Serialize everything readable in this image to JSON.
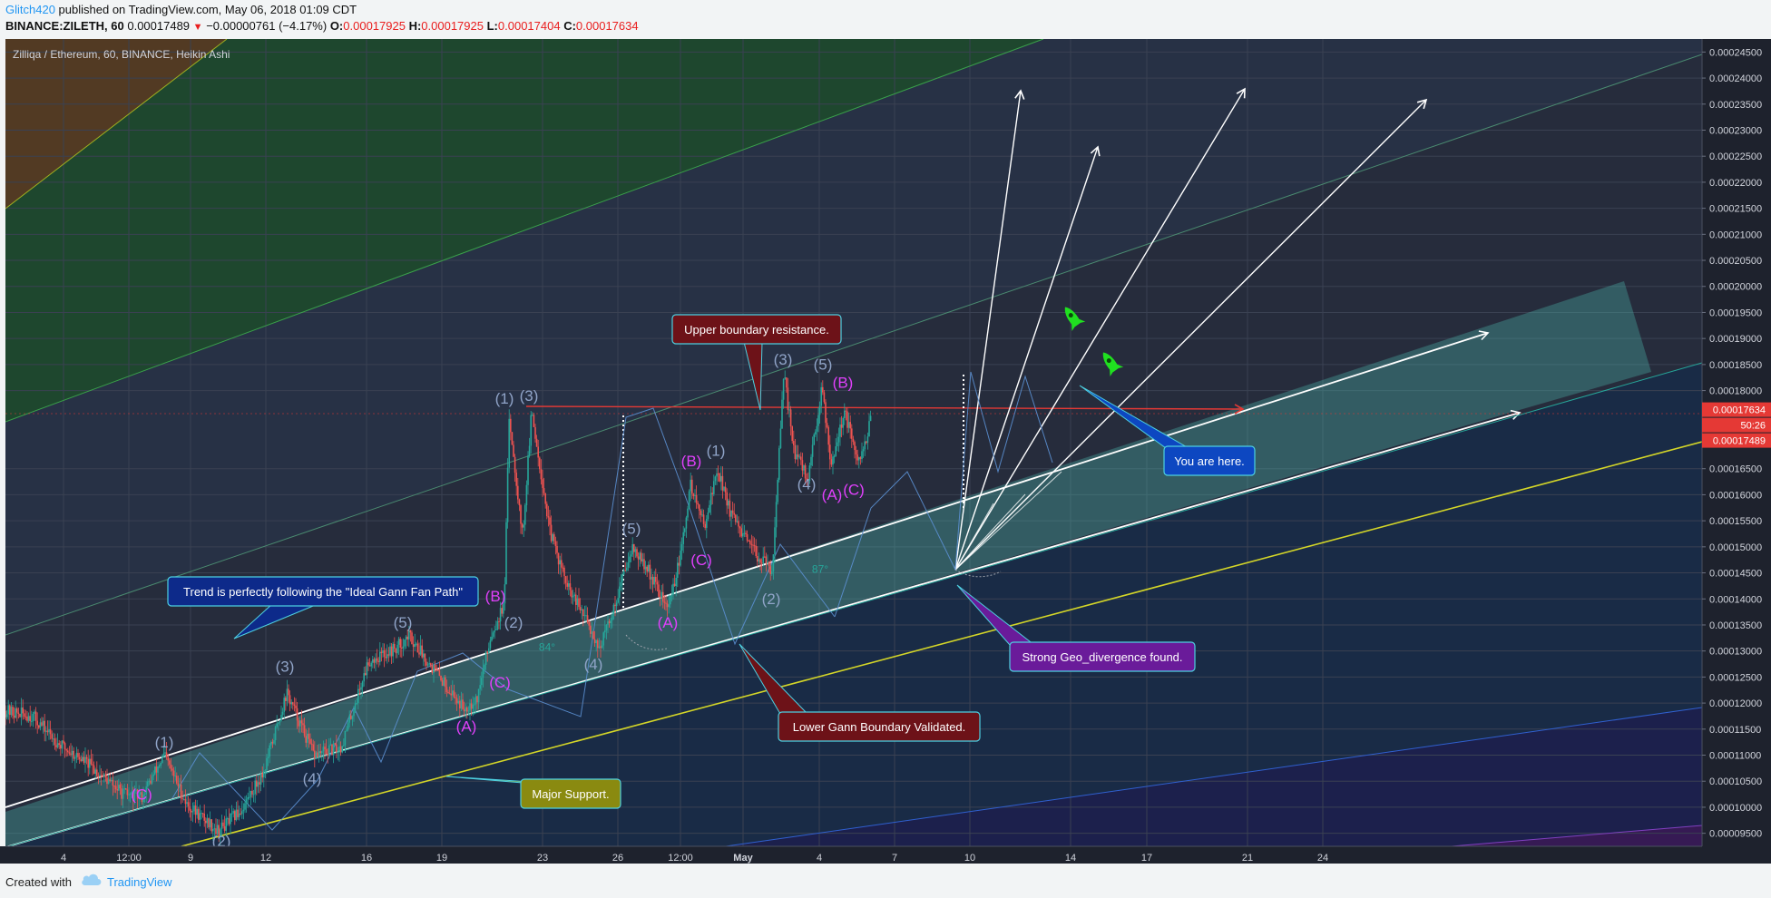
{
  "header": {
    "author": "Glitch420",
    "published_text": "published on TradingView.com, May 06, 2018 01:09 CDT",
    "symbol_line": "BINANCE:ZILETH, 60",
    "last_price": "0.00017489",
    "change": "−0.00000761 (−4.17%)",
    "open_label": "O:",
    "open": "0.00017925",
    "high_label": "H:",
    "high": "0.00017925",
    "low_label": "L:",
    "low": "0.00017404",
    "close_label": "C:",
    "close": "0.00017634"
  },
  "chart_title": "Zilliqa / Ethereum, 60, BINANCE, Heikin Ashi",
  "chart_data": {
    "type": "candlestick",
    "title": "Zilliqa / Ethereum, 60, BINANCE, Heikin Ashi",
    "ylim": [
      9.25e-05,
      0.0002475
    ],
    "y_ticks": [
      "0.00024500",
      "0.00024000",
      "0.00023500",
      "0.00023000",
      "0.00022500",
      "0.00022000",
      "0.00021500",
      "0.00021000",
      "0.00020500",
      "0.00020000",
      "0.00019500",
      "0.00019000",
      "0.00018500",
      "0.00018000",
      "0.00016500",
      "0.00016000",
      "0.00015500",
      "0.00015000",
      "0.00014500",
      "0.00014000",
      "0.00013500",
      "0.00013000",
      "0.00012500",
      "0.00012000",
      "0.00011500",
      "0.00011000",
      "0.00010500",
      "0.00010000",
      "0.00009500"
    ],
    "x_ticks": [
      {
        "label": "4",
        "t": 64
      },
      {
        "label": "12:00",
        "t": 136
      },
      {
        "label": "9",
        "t": 204
      },
      {
        "label": "12",
        "t": 287
      },
      {
        "label": "16",
        "t": 398
      },
      {
        "label": "19",
        "t": 481
      },
      {
        "label": "23",
        "t": 592
      },
      {
        "label": "26",
        "t": 675
      },
      {
        "label": "12:00",
        "t": 744
      },
      {
        "label": "May",
        "t": 813
      },
      {
        "label": "4",
        "t": 897
      },
      {
        "label": "7",
        "t": 980
      },
      {
        "label": "10",
        "t": 1063
      },
      {
        "label": "14",
        "t": 1174
      },
      {
        "label": "17",
        "t": 1258
      },
      {
        "label": "21",
        "t": 1369
      },
      {
        "label": "24",
        "t": 1452
      }
    ],
    "price_labels": [
      {
        "text": "0.00017634",
        "value": 0.00017634,
        "color": "#e53935"
      },
      {
        "text": "50:26",
        "value": 0.0001732,
        "color": "#e53935"
      },
      {
        "text": "0.00017489",
        "value": 0.00017489,
        "color": "#e53935"
      }
    ],
    "price_path": [
      [
        0,
        0.0001185
      ],
      [
        30,
        0.0001175
      ],
      [
        60,
        0.000112
      ],
      [
        90,
        0.0001085
      ],
      [
        130,
        0.0001025
      ],
      [
        150,
        0.000102
      ],
      [
        175,
        0.00011
      ],
      [
        200,
        0.0001005
      ],
      [
        235,
        9.55e-05
      ],
      [
        260,
        9.95e-05
      ],
      [
        285,
        0.000107
      ],
      [
        310,
        0.000122
      ],
      [
        340,
        0.00011
      ],
      [
        370,
        0.0001115
      ],
      [
        400,
        0.000128
      ],
      [
        430,
        0.0001305
      ],
      [
        445,
        0.000133
      ],
      [
        470,
        0.000127
      ],
      [
        505,
        0.000119
      ],
      [
        520,
        0.000121
      ],
      [
        535,
        0.000133
      ],
      [
        550,
        0.000139
      ],
      [
        555,
        0.0001755
      ],
      [
        570,
        0.000152
      ],
      [
        580,
        0.000176
      ],
      [
        600,
        0.000153
      ],
      [
        620,
        0.000142
      ],
      [
        640,
        0.000136
      ],
      [
        655,
        0.0001305
      ],
      [
        670,
        0.000138
      ],
      [
        690,
        0.00015
      ],
      [
        710,
        0.000145
      ],
      [
        730,
        0.000138
      ],
      [
        745,
        0.000149
      ],
      [
        755,
        0.000162
      ],
      [
        770,
        0.000154
      ],
      [
        785,
        0.000165
      ],
      [
        800,
        0.000156
      ],
      [
        820,
        0.00015
      ],
      [
        845,
        0.0001455
      ],
      [
        858,
        0.000183
      ],
      [
        870,
        0.000168
      ],
      [
        885,
        0.000163
      ],
      [
        900,
        0.000181
      ],
      [
        910,
        0.000166
      ],
      [
        925,
        0.000176
      ],
      [
        940,
        0.0001655
      ],
      [
        955,
        0.000175
      ]
    ]
  },
  "wave_labels": [
    {
      "text": "(C)",
      "t": 150,
      "v": 0.0001015,
      "color": "#e040fb"
    },
    {
      "text": "(1)",
      "t": 175,
      "v": 0.0001115,
      "color": "#90a4c8"
    },
    {
      "text": "(2)",
      "t": 238,
      "v": 9.25e-05,
      "color": "#90a4c8"
    },
    {
      "text": "(3)",
      "t": 308,
      "v": 0.000126,
      "color": "#90a4c8"
    },
    {
      "text": "(4)",
      "t": 338,
      "v": 0.0001045,
      "color": "#90a4c8"
    },
    {
      "text": "(5)",
      "t": 438,
      "v": 0.0001345,
      "color": "#90a4c8"
    },
    {
      "text": "(A)",
      "t": 508,
      "v": 0.0001145,
      "color": "#e040fb"
    },
    {
      "text": "(C)",
      "t": 545,
      "v": 0.000123,
      "color": "#e040fb"
    },
    {
      "text": "(B)",
      "t": 540,
      "v": 0.0001395,
      "color": "#e040fb"
    },
    {
      "text": "(2)",
      "t": 560,
      "v": 0.0001345,
      "color": "#90a4c8"
    },
    {
      "text": "(1)",
      "t": 550,
      "v": 0.0001775,
      "color": "#90a4c8"
    },
    {
      "text": "(3)",
      "t": 577,
      "v": 0.000178,
      "color": "#90a4c8"
    },
    {
      "text": "(4)",
      "t": 648,
      "v": 0.0001265,
      "color": "#90a4c8"
    },
    {
      "text": "(5)",
      "t": 690,
      "v": 0.0001525,
      "color": "#90a4c8"
    },
    {
      "text": "(A)",
      "t": 730,
      "v": 0.0001345,
      "color": "#e040fb"
    },
    {
      "text": "(B)",
      "t": 756,
      "v": 0.0001655,
      "color": "#e040fb"
    },
    {
      "text": "(1)",
      "t": 783,
      "v": 0.0001675,
      "color": "#90a4c8"
    },
    {
      "text": "(C)",
      "t": 767,
      "v": 0.0001465,
      "color": "#e040fb"
    },
    {
      "text": "(2)",
      "t": 844,
      "v": 0.000139,
      "color": "#90a4c8"
    },
    {
      "text": "(3)",
      "t": 857,
      "v": 0.000185,
      "color": "#90a4c8"
    },
    {
      "text": "(5)",
      "t": 901,
      "v": 0.000184,
      "color": "#90a4c8"
    },
    {
      "text": "(B)",
      "t": 923,
      "v": 0.0001805,
      "color": "#e040fb"
    },
    {
      "text": "(4)",
      "t": 883,
      "v": 0.000161,
      "color": "#90a4c8"
    },
    {
      "text": "(A)",
      "t": 911,
      "v": 0.000159,
      "color": "#e040fb"
    },
    {
      "text": "(C)",
      "t": 935,
      "v": 0.00016,
      "color": "#e040fb"
    }
  ],
  "angle_labels": [
    {
      "text": "87°",
      "t": 898,
      "v": 0.000145,
      "color": "#26a69a"
    },
    {
      "text": "84°",
      "t": 597,
      "v": 0.00013,
      "color": "#26a69a"
    }
  ],
  "callouts": [
    {
      "id": "upper",
      "text": "Upper boundary resistance.",
      "bg": "#6d1218",
      "border": "#4dd0e1"
    },
    {
      "id": "trend",
      "text": "Trend is perfectly following the \"Ideal Gann Fan Path\"",
      "bg": "#0d2a8a",
      "border": "#4dd0e1"
    },
    {
      "id": "you",
      "text": "You are here.",
      "bg": "#0d47c1",
      "border": "#4dd0e1"
    },
    {
      "id": "geo",
      "text": "Strong Geo_divergence found.",
      "bg": "#6a1b9a",
      "border": "#4dd0e1"
    },
    {
      "id": "lower",
      "text": "Lower Gann Boundary Validated.",
      "bg": "#6d1218",
      "border": "#4dd0e1"
    },
    {
      "id": "major",
      "text": "Major Support.",
      "bg": "#8a8a10",
      "border": "#4dd0e1"
    }
  ],
  "colors": {
    "chart_bg": "#1f2533",
    "up_candle": "#26a69a",
    "down_candle": "#ef5350",
    "resistance_line": "#e53935",
    "support_line": "#d4d628",
    "channel_fill": "#4db6ac",
    "axis_text": "#d1d4dc"
  },
  "footer": {
    "created_with": "Created with",
    "brand": "TradingView"
  }
}
